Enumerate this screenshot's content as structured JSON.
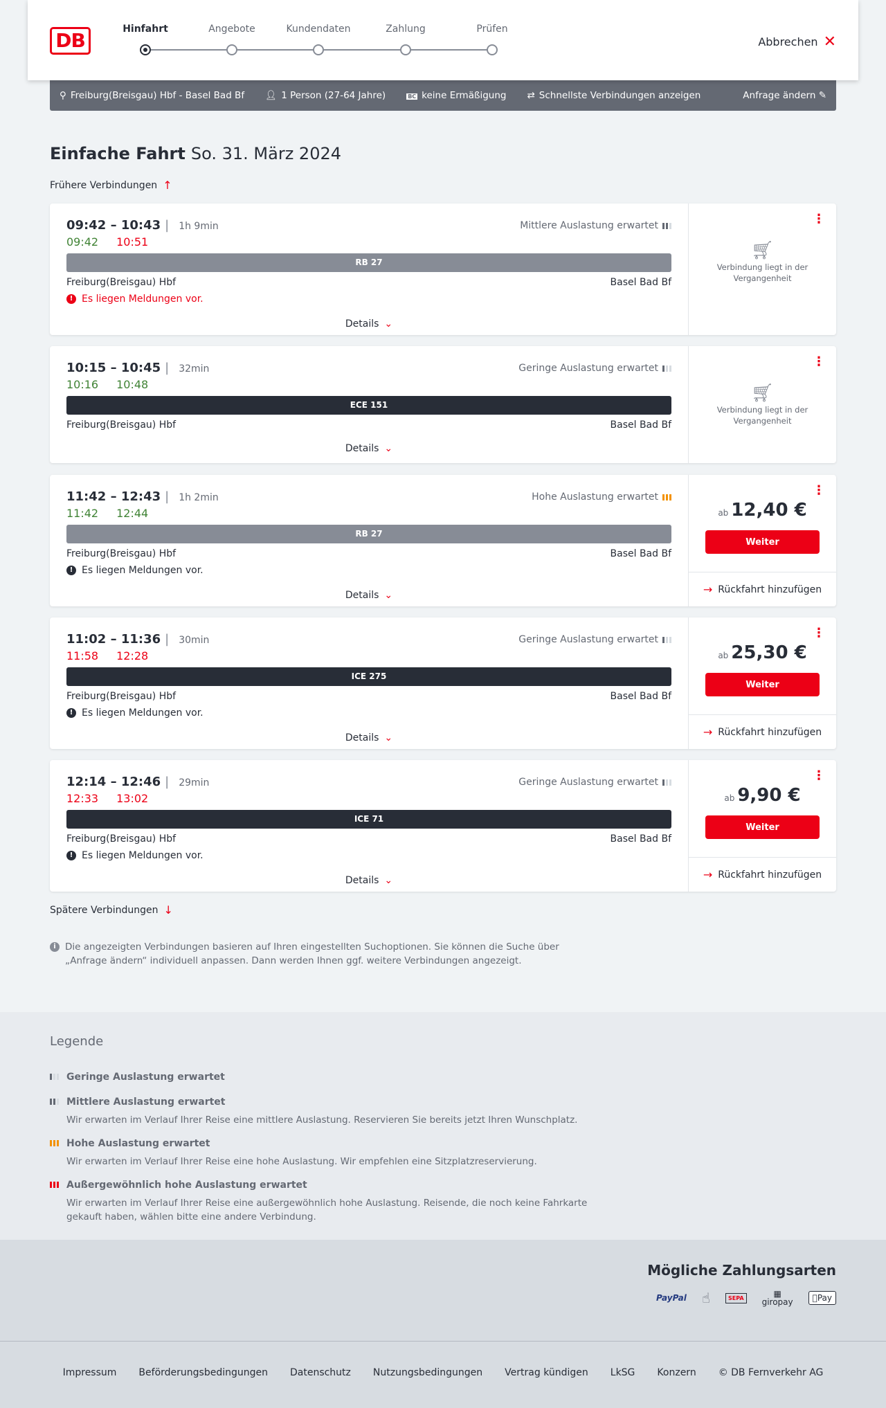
{
  "header": {
    "logo": "DB",
    "steps": [
      "Hinfahrt",
      "Angebote",
      "Kundendaten",
      "Zahlung",
      "Prüfen"
    ],
    "active_step": 0,
    "cancel": "Abbrechen"
  },
  "search": {
    "route": "Freiburg(Breisgau) Hbf - Basel Bad Bf",
    "passengers": "1 Person (27-64 Jahre)",
    "discount": "keine Ermäßigung",
    "fastest": "Schnellste Verbindungen anzeigen",
    "edit": "Anfrage ändern"
  },
  "title": {
    "type": "Einfache Fahrt",
    "date": "So. 31. März 2024"
  },
  "earlier": "Frühere Verbindungen",
  "later": "Spätere Verbindungen",
  "details_label": "Details",
  "colors": {
    "red": "#ec0016",
    "green": "#408335",
    "text": "#282d37",
    "regional": "#878c96",
    "longdistance": "#282d37",
    "high_load": "#f39200"
  },
  "connections": [
    {
      "times": "09:42 – 10:43",
      "duration": "1h 9min",
      "load": "Mittlere Auslastung erwartet",
      "load_level": 2,
      "rt_dep": "09:42",
      "rt_dep_status": "on-time",
      "rt_arr": "10:51",
      "rt_arr_status": "delayed",
      "train": "RB 27",
      "train_kind": "regional",
      "from": "Freiburg(Breisgau) Hbf",
      "to": "Basel Bad Bf",
      "message": "Es liegen Meldungen vor.",
      "message_severity": "warning",
      "past": "Verbindung liegt in der Vergangenheit"
    },
    {
      "times": "10:15 – 10:45",
      "duration": "32min",
      "load": "Geringe Auslastung erwartet",
      "load_level": 1,
      "rt_dep": "10:16",
      "rt_dep_status": "on-time",
      "rt_arr": "10:48",
      "rt_arr_status": "on-time",
      "train": "ECE 151",
      "train_kind": "longdistance",
      "from": "Freiburg(Breisgau) Hbf",
      "to": "Basel Bad Bf",
      "past": "Verbindung liegt in der Vergangenheit"
    },
    {
      "times": "11:42 – 12:43",
      "duration": "1h 2min",
      "load": "Hohe Auslastung erwartet",
      "load_level": 3,
      "rt_dep": "11:42",
      "rt_dep_status": "on-time",
      "rt_arr": "12:44",
      "rt_arr_status": "on-time",
      "train": "RB 27",
      "train_kind": "regional",
      "from": "Freiburg(Breisgau) Hbf",
      "to": "Basel Bad Bf",
      "message": "Es liegen Meldungen vor.",
      "message_severity": "info",
      "price_prefix": "ab",
      "price": "12,40 €",
      "button": "Weiter",
      "return": "Rückfahrt hinzufügen"
    },
    {
      "times": "11:02 – 11:36",
      "duration": "30min",
      "load": "Geringe Auslastung erwartet",
      "load_level": 1,
      "rt_dep": "11:58",
      "rt_dep_status": "delayed",
      "rt_arr": "12:28",
      "rt_arr_status": "delayed",
      "train": "ICE 275",
      "train_kind": "longdistance",
      "from": "Freiburg(Breisgau) Hbf",
      "to": "Basel Bad Bf",
      "message": "Es liegen Meldungen vor.",
      "message_severity": "info",
      "price_prefix": "ab",
      "price": "25,30 €",
      "button": "Weiter",
      "return": "Rückfahrt hinzufügen"
    },
    {
      "times": "12:14 – 12:46",
      "duration": "29min",
      "load": "Geringe Auslastung erwartet",
      "load_level": 1,
      "rt_dep": "12:33",
      "rt_dep_status": "delayed",
      "rt_arr": "13:02",
      "rt_arr_status": "delayed",
      "train": "ICE 71",
      "train_kind": "longdistance",
      "from": "Freiburg(Breisgau) Hbf",
      "to": "Basel Bad Bf",
      "message": "Es liegen Meldungen vor.",
      "message_severity": "info",
      "price_prefix": "ab",
      "price": "9,90 €",
      "button": "Weiter",
      "return": "Rückfahrt hinzufügen"
    }
  ],
  "info": "Die angezeigten Verbindungen basieren auf Ihren eingestellten Suchoptionen. Sie können die Suche über „Anfrage ändern“ individuell anpassen. Dann werden Ihnen ggf. weitere Verbindungen angezeigt.",
  "legend": {
    "title": "Legende",
    "items": [
      {
        "title": "Geringe Auslastung erwartet",
        "level": 1
      },
      {
        "title": "Mittlere Auslastung erwartet",
        "level": 2,
        "text": "Wir erwarten im Verlauf Ihrer Reise eine mittlere Auslastung. Reservieren Sie bereits jetzt Ihren Wunschplatz."
      },
      {
        "title": "Hohe Auslastung erwartet",
        "level": 3,
        "text": "Wir erwarten im Verlauf Ihrer Reise eine hohe Auslastung. Wir empfehlen eine Sitzplatzreservierung."
      },
      {
        "title": "Außergewöhnlich hohe Auslastung erwartet",
        "level": 4,
        "text": "Wir erwarten im Verlauf Ihrer Reise eine außergewöhnlich hohe Auslastung. Reisende, die noch keine Fahrkarte gekauft haben, wählen bitte eine andere Verbindung."
      }
    ]
  },
  "payment": {
    "title": "Mögliche Zahlungsarten",
    "methods": [
      "PayPal",
      "Kreditkarte",
      "SEPA",
      "giropay",
      "Pay"
    ]
  },
  "footer": [
    "Impressum",
    "Beförderungsbedingungen",
    "Datenschutz",
    "Nutzungsbedingungen",
    "Vertrag kündigen",
    "LkSG",
    "Konzern",
    "© DB Fernverkehr AG"
  ]
}
